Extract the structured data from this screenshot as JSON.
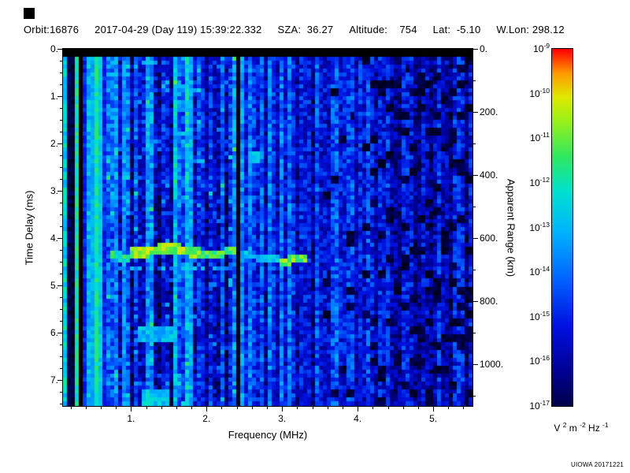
{
  "watermark": "UIOWA 20171221",
  "header": {
    "items": [
      "Orbit:16876",
      "2017-04-29 (Day 119) 15:39:22.332",
      "SZA:  36.27",
      "Altitude:    754",
      "Lat:  -5.10",
      "W.Lon: 298.12"
    ]
  },
  "chart_data": {
    "type": "heatmap",
    "xlabel": "Frequency (MHz)",
    "ylabel": "Time Delay (ms)",
    "y2label": "Apparent Range (km)",
    "xlim": [
      0.1,
      5.52
    ],
    "ylim": [
      0,
      7.55
    ],
    "y2lim": [
      0,
      1130
    ],
    "x_ticks": [
      1,
      2,
      3,
      4,
      5
    ],
    "x_tick_labels": [
      "1.",
      "2.",
      "3.",
      "4.",
      "5."
    ],
    "y_ticks": [
      0,
      1,
      2,
      3,
      4,
      5,
      6,
      7
    ],
    "y_tick_labels": [
      "0.",
      "1.",
      "2.",
      "3.",
      "4.",
      "5.",
      "6.",
      "7."
    ],
    "y2_ticks": [
      0,
      200,
      400,
      600,
      800,
      1000
    ],
    "y2_tick_labels": [
      "0.",
      "200.",
      "400.",
      "600.",
      "800.",
      "1000."
    ],
    "colorbar": {
      "mantissa": "10",
      "exponents": [
        "-9",
        "-10",
        "-11",
        "-12",
        "-13",
        "-14",
        "-15",
        "-16",
        "-17"
      ],
      "scale_min": "1e-17",
      "scale_max": "1e-9",
      "unit_tokens": [
        {
          "t": "V "
        },
        {
          "s": "2"
        },
        {
          "t": " m "
        },
        {
          "s": "-2"
        },
        {
          "t": " Hz "
        },
        {
          "s": "-1"
        }
      ]
    },
    "colormap_stops": [
      [
        0.0,
        "#000000"
      ],
      [
        0.08,
        "#000038"
      ],
      [
        0.18,
        "#000090"
      ],
      [
        0.3,
        "#0010e0"
      ],
      [
        0.42,
        "#0064ff"
      ],
      [
        0.54,
        "#00b4ff"
      ],
      [
        0.64,
        "#00e0d0"
      ],
      [
        0.73,
        "#30e860"
      ],
      [
        0.81,
        "#90f020"
      ],
      [
        0.88,
        "#e0e800"
      ],
      [
        0.94,
        "#ff9800"
      ],
      [
        1.0,
        "#ff0000"
      ]
    ],
    "spectrogram": {
      "grid": [
        104,
        90
      ],
      "base_level": 0.34,
      "noise_amp": 0.22,
      "right_fade_start": 3.3,
      "right_fade_rate": 0.045,
      "low_band_max": 0.65,
      "stripe_region": [
        0.65,
        2.42
      ],
      "stripe_amp": 0.42,
      "stripe_region2": [
        2.42,
        3.45
      ],
      "stripe_amp2": 0.3,
      "band_amp_default": 0.2,
      "black_top_ms": 0.13,
      "blotch_start": 3.55,
      "blotch_rate": 0.11,
      "dark_columns": [
        {
          "f": 0.205,
          "w": 0.04
        },
        {
          "f": 0.315,
          "w": 0.03
        },
        {
          "f": 2.415,
          "w": 0.09
        }
      ],
      "bright_columns": [
        {
          "f": 0.135,
          "w": 0.03,
          "v": 0.6
        },
        {
          "f": 0.26,
          "w": 0.03,
          "v": 0.55
        },
        {
          "f": 0.455,
          "w": 0.035,
          "v": 0.55
        },
        {
          "f": 0.9,
          "w": 0.04,
          "v": 0.5
        },
        {
          "f": 1.78,
          "w": 0.05,
          "v": 0.52
        }
      ],
      "echo_segments": [
        {
          "f0": 0.74,
          "f1": 0.96,
          "t": 4.4,
          "w": 0.18,
          "v": 0.68
        },
        {
          "f0": 0.96,
          "f1": 1.92,
          "t": 4.28,
          "w": 0.2,
          "v": 0.8
        },
        {
          "f0": 1.92,
          "f1": 2.37,
          "t": 4.35,
          "w": 0.16,
          "v": 0.72
        },
        {
          "f0": 2.47,
          "f1": 2.97,
          "t": 4.4,
          "w": 0.13,
          "v": 0.58
        },
        {
          "f0": 2.97,
          "f1": 3.34,
          "t": 4.52,
          "w": 0.18,
          "v": 0.78
        }
      ],
      "secondary_echo": {
        "f0": 0.85,
        "f1": 2.32,
        "t": 4.66,
        "w": 0.12,
        "v": 0.5
      },
      "patches": [
        {
          "f0": 1.1,
          "f1": 1.62,
          "t0": 5.85,
          "t1": 6.18,
          "v": 0.55
        },
        {
          "f0": 1.13,
          "f1": 1.5,
          "t0": 7.22,
          "t1": 7.52,
          "v": 0.58
        },
        {
          "f0": 2.55,
          "f1": 2.72,
          "t0": 2.2,
          "t1": 2.42,
          "v": 0.56
        }
      ]
    }
  }
}
